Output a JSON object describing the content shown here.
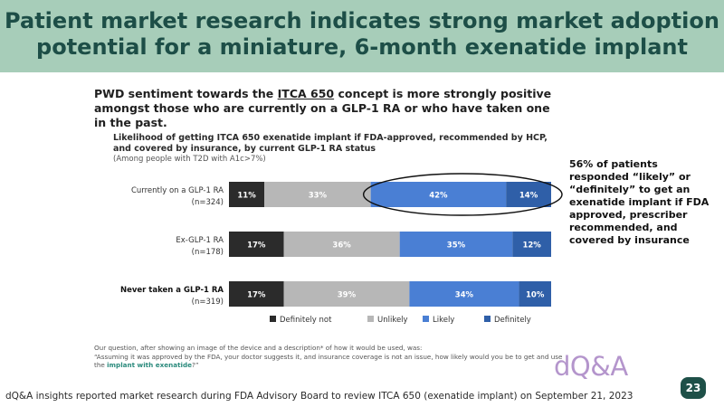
{
  "slide": {
    "title_line1": "Patient market research indicates strong market adoption",
    "title_line2": "potential for a miniature, 6-month exenatide implant",
    "page_number": "23",
    "footer": "dQ&A insights reported market research during FDA Advisory Board to review ITCA 650 (exenatide implant) on September 21, 2023",
    "logo": "dQ&A",
    "callout": "56% of patients responded “likely” or “definitely” to get an exenatide implant if FDA approved, prescriber recommended, and covered by insurance",
    "colors": {
      "band": "#a7cdb9",
      "title": "#1d4e47",
      "badge": "#1e5048",
      "logo": "#b495cc"
    }
  },
  "headline": {
    "part1": "PWD sentiment towards the ",
    "underlined": "ITCA 650",
    "part2": " concept is more strongly positive amongst those who are currently on a GLP-1 RA or who have taken one in the past."
  },
  "footnote": {
    "line1": "Our question, after showing an image of the device and a description* of how it would be used, was:",
    "line2": "“Assuming it was approved by the FDA, your doctor suggests it, and insurance coverage is not an issue, how likely would you be to get and use the ",
    "highlight": "implant with exenatide",
    "line3": "?”"
  },
  "chart_data": {
    "type": "bar",
    "orientation": "horizontal-stacked",
    "title": "Likelihood of getting ITCA 650 exenatide implant if FDA-approved, recommended by HCP, and covered by insurance, by current GLP-1 RA status",
    "subtitle": "(Among people with T2D with A1c>7%)",
    "categories": [
      {
        "name": "Currently on a GLP-1 RA",
        "n": "(n=324)"
      },
      {
        "name": "Ex-GLP-1 RA",
        "n": "(n=178)"
      },
      {
        "name": "Never taken a GLP-1 RA",
        "n": "(n=319)"
      }
    ],
    "series": [
      {
        "name": "Definitely not",
        "color": "#2b2b2b",
        "values": [
          11,
          17,
          17
        ]
      },
      {
        "name": "Unlikely",
        "color": "#b7b7b7",
        "values": [
          33,
          36,
          39
        ]
      },
      {
        "name": "Likely",
        "color": "#4a7fd4",
        "values": [
          42,
          35,
          34
        ]
      },
      {
        "name": "Definitely",
        "color": "#2f5fa8",
        "values": [
          14,
          12,
          10
        ]
      }
    ],
    "xlim": [
      0,
      100
    ],
    "legend": "bottom",
    "annotation": "oval around Likely + Definitely for Currently on a GLP-1 RA"
  }
}
